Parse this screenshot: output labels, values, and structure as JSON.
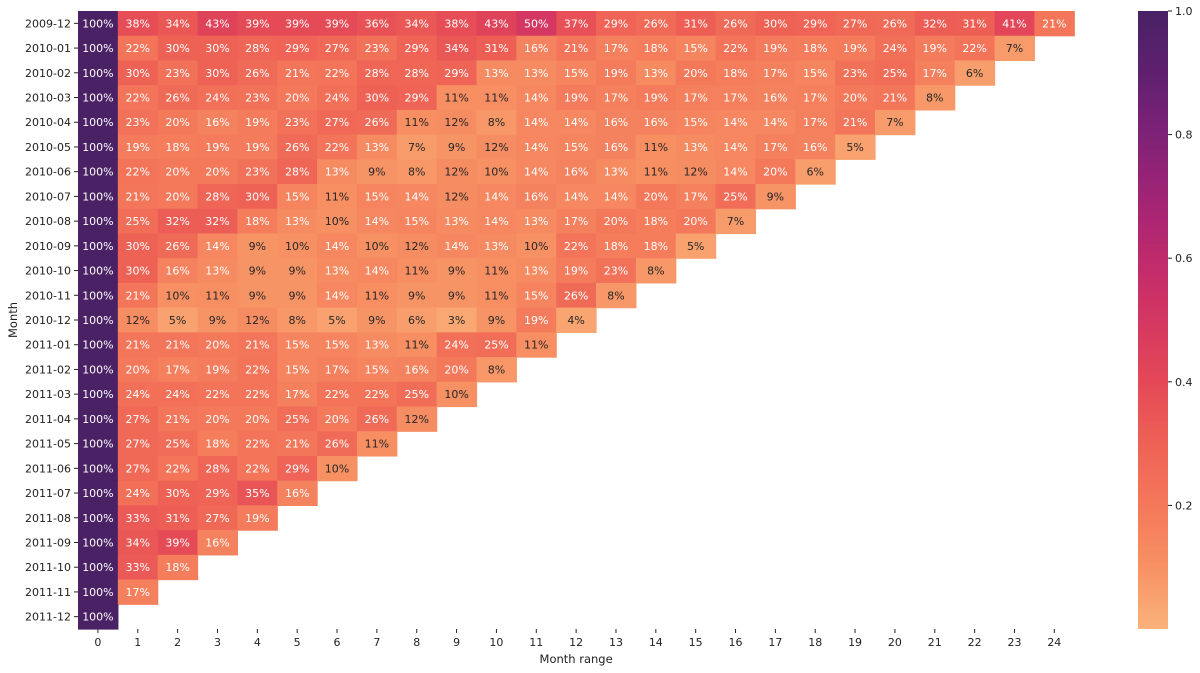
{
  "chart_data": {
    "type": "heatmap",
    "title": "",
    "xlabel": "Month range",
    "ylabel": "Month",
    "rows": [
      "2009-12",
      "2010-01",
      "2010-02",
      "2010-03",
      "2010-04",
      "2010-05",
      "2010-06",
      "2010-07",
      "2010-08",
      "2010-09",
      "2010-10",
      "2010-11",
      "2010-12",
      "2011-01",
      "2011-02",
      "2011-03",
      "2011-04",
      "2011-05",
      "2011-06",
      "2011-07",
      "2011-08",
      "2011-09",
      "2011-10",
      "2011-11",
      "2011-12"
    ],
    "columns": [
      "0",
      "1",
      "2",
      "3",
      "4",
      "5",
      "6",
      "7",
      "8",
      "9",
      "10",
      "11",
      "12",
      "13",
      "14",
      "15",
      "16",
      "17",
      "18",
      "19",
      "20",
      "21",
      "22",
      "23",
      "24"
    ],
    "value_format": "percent",
    "colormap": "magma_r (flare)",
    "colorbar": {
      "min": 0.0,
      "max": 1.0,
      "ticks": [
        "0.2",
        "0.4",
        "0.6",
        "0.8",
        "1.0"
      ]
    },
    "values": [
      [
        100,
        38,
        34,
        43,
        39,
        39,
        39,
        36,
        34,
        38,
        43,
        50,
        37,
        29,
        26,
        31,
        26,
        30,
        29,
        27,
        26,
        32,
        31,
        41,
        21
      ],
      [
        100,
        22,
        30,
        30,
        28,
        29,
        27,
        23,
        29,
        34,
        31,
        16,
        21,
        17,
        18,
        15,
        22,
        19,
        18,
        19,
        24,
        19,
        22,
        7
      ],
      [
        100,
        30,
        23,
        30,
        26,
        21,
        22,
        28,
        28,
        29,
        13,
        13,
        15,
        19,
        13,
        20,
        18,
        17,
        15,
        23,
        25,
        17,
        6
      ],
      [
        100,
        22,
        26,
        24,
        23,
        20,
        24,
        30,
        29,
        11,
        11,
        14,
        19,
        17,
        19,
        17,
        17,
        16,
        17,
        20,
        21,
        8
      ],
      [
        100,
        23,
        20,
        16,
        19,
        23,
        27,
        26,
        11,
        12,
        8,
        14,
        14,
        16,
        16,
        15,
        14,
        14,
        17,
        21,
        7
      ],
      [
        100,
        19,
        18,
        19,
        19,
        26,
        22,
        13,
        7,
        9,
        12,
        14,
        15,
        16,
        11,
        13,
        14,
        17,
        16,
        5
      ],
      [
        100,
        22,
        20,
        20,
        23,
        28,
        13,
        9,
        8,
        12,
        10,
        14,
        16,
        13,
        11,
        12,
        14,
        20,
        6
      ],
      [
        100,
        21,
        20,
        28,
        30,
        15,
        11,
        15,
        14,
        12,
        14,
        16,
        14,
        14,
        20,
        17,
        25,
        9
      ],
      [
        100,
        25,
        32,
        32,
        18,
        13,
        10,
        14,
        15,
        13,
        14,
        13,
        17,
        20,
        18,
        20,
        7
      ],
      [
        100,
        30,
        26,
        14,
        9,
        10,
        14,
        10,
        12,
        14,
        13,
        10,
        22,
        18,
        18,
        5
      ],
      [
        100,
        30,
        16,
        13,
        9,
        9,
        13,
        14,
        11,
        9,
        11,
        13,
        19,
        23,
        8
      ],
      [
        100,
        21,
        10,
        11,
        9,
        9,
        14,
        11,
        9,
        9,
        11,
        15,
        26,
        8
      ],
      [
        100,
        12,
        5,
        9,
        12,
        8,
        5,
        9,
        6,
        3,
        9,
        19,
        4
      ],
      [
        100,
        21,
        21,
        20,
        21,
        15,
        15,
        13,
        11,
        24,
        25,
        11
      ],
      [
        100,
        20,
        17,
        19,
        22,
        15,
        17,
        15,
        16,
        20,
        8
      ],
      [
        100,
        24,
        24,
        22,
        22,
        17,
        22,
        22,
        25,
        10
      ],
      [
        100,
        27,
        21,
        20,
        20,
        25,
        20,
        26,
        12
      ],
      [
        100,
        27,
        25,
        18,
        22,
        21,
        26,
        11
      ],
      [
        100,
        27,
        22,
        28,
        22,
        29,
        10
      ],
      [
        100,
        24,
        30,
        29,
        35,
        16
      ],
      [
        100,
        33,
        31,
        27,
        19
      ],
      [
        100,
        34,
        39,
        16
      ],
      [
        100,
        33,
        18
      ],
      [
        100,
        17
      ],
      [
        100
      ]
    ]
  }
}
